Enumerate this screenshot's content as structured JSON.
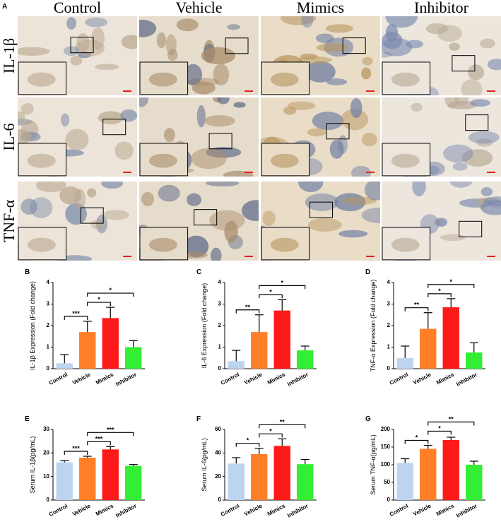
{
  "figure": {
    "panel_label": "A",
    "columns": [
      "Control",
      "Vehicle",
      "Mimics",
      "Inhibitor"
    ],
    "rows": [
      "IL-1β",
      "IL-6",
      "TNF-α"
    ]
  },
  "chart_data": [
    {
      "type": "bar",
      "panel_label": "B",
      "ylabel": "IL-1β Expression (Fold change)",
      "categories": [
        "Control",
        "Vehicle",
        "Mimics",
        "Inhibitor"
      ],
      "values": [
        0.25,
        1.7,
        2.35,
        1.0
      ],
      "errors": [
        0.4,
        0.5,
        0.5,
        0.3
      ],
      "colors": [
        "#bcd4f0",
        "#ff7f27",
        "#ff1a1a",
        "#33ee33"
      ],
      "ylim": [
        0,
        4
      ],
      "yticks": [
        0,
        1,
        2,
        3,
        4
      ],
      "comparisons": [
        {
          "from": "Control",
          "to": "Vehicle",
          "label": "***"
        },
        {
          "from": "Vehicle",
          "to": "Mimics",
          "label": "*"
        },
        {
          "from": "Vehicle",
          "to": "Inhibitor",
          "label": "*"
        }
      ]
    },
    {
      "type": "bar",
      "panel_label": "C",
      "ylabel": "IL-6 Expression (Fold change)",
      "categories": [
        "Control",
        "Vehicle",
        "Mimics",
        "Inhibitor"
      ],
      "values": [
        0.35,
        1.7,
        2.7,
        0.85
      ],
      "errors": [
        0.5,
        0.8,
        0.5,
        0.2
      ],
      "colors": [
        "#bcd4f0",
        "#ff7f27",
        "#ff1a1a",
        "#33ee33"
      ],
      "ylim": [
        0,
        4
      ],
      "yticks": [
        0,
        1,
        2,
        3,
        4
      ],
      "comparisons": [
        {
          "from": "Control",
          "to": "Vehicle",
          "label": "**"
        },
        {
          "from": "Vehicle",
          "to": "Mimics",
          "label": "*"
        },
        {
          "from": "Vehicle",
          "to": "Inhibitor",
          "label": "*"
        }
      ]
    },
    {
      "type": "bar",
      "panel_label": "D",
      "ylabel": "TNF-α Expression (Fold change)",
      "categories": [
        "Control",
        "Vehicle",
        "Mimics",
        "Inhibitor"
      ],
      "values": [
        0.5,
        1.85,
        2.85,
        0.75
      ],
      "errors": [
        0.55,
        0.75,
        0.4,
        0.45
      ],
      "colors": [
        "#bcd4f0",
        "#ff7f27",
        "#ff1a1a",
        "#33ee33"
      ],
      "ylim": [
        0,
        4
      ],
      "yticks": [
        0,
        1,
        2,
        3,
        4
      ],
      "comparisons": [
        {
          "from": "Control",
          "to": "Vehicle",
          "label": "**"
        },
        {
          "from": "Vehicle",
          "to": "Mimics",
          "label": "*"
        },
        {
          "from": "Vehicle",
          "to": "Inhibitor",
          "label": "*"
        }
      ]
    },
    {
      "type": "bar",
      "panel_label": "E",
      "ylabel": "Serum IL-1β(pg/mL)",
      "categories": [
        "Control",
        "Vehicle",
        "Mimics",
        "Inhibitor"
      ],
      "values": [
        16,
        18,
        21.5,
        14.5
      ],
      "errors": [
        0.7,
        0.6,
        1.2,
        0.6
      ],
      "colors": [
        "#bcd4f0",
        "#ff7f27",
        "#ff1a1a",
        "#33ee33"
      ],
      "ylim": [
        0,
        30
      ],
      "yticks": [
        0,
        10,
        20,
        30
      ],
      "comparisons": [
        {
          "from": "Control",
          "to": "Vehicle",
          "label": "***"
        },
        {
          "from": "Vehicle",
          "to": "Mimics",
          "label": "***"
        },
        {
          "from": "Vehicle",
          "to": "Inhibitor",
          "label": "***"
        }
      ]
    },
    {
      "type": "bar",
      "panel_label": "F",
      "ylabel": "Serum IL-6(pg/mL)",
      "categories": [
        "Control",
        "Vehicle",
        "Mimics",
        "Inhibitor"
      ],
      "values": [
        31,
        39,
        46,
        30.5
      ],
      "errors": [
        5,
        5,
        6,
        4
      ],
      "colors": [
        "#bcd4f0",
        "#ff7f27",
        "#ff1a1a",
        "#33ee33"
      ],
      "ylim": [
        0,
        60
      ],
      "yticks": [
        0,
        20,
        40,
        60
      ],
      "comparisons": [
        {
          "from": "Control",
          "to": "Vehicle",
          "label": "*"
        },
        {
          "from": "Vehicle",
          "to": "Mimics",
          "label": "*"
        },
        {
          "from": "Vehicle",
          "to": "Inhibitor",
          "label": "**"
        }
      ]
    },
    {
      "type": "bar",
      "panel_label": "G",
      "ylabel": "Serum TNF-α(pg/mL)",
      "categories": [
        "Control",
        "Vehicle",
        "Mimics",
        "Inhibitor"
      ],
      "values": [
        105,
        145,
        170,
        100
      ],
      "errors": [
        12,
        10,
        8,
        10
      ],
      "colors": [
        "#bcd4f0",
        "#ff7f27",
        "#ff1a1a",
        "#33ee33"
      ],
      "ylim": [
        0,
        200
      ],
      "yticks": [
        0,
        50,
        100,
        150,
        200
      ],
      "comparisons": [
        {
          "from": "Control",
          "to": "Vehicle",
          "label": "*"
        },
        {
          "from": "Vehicle",
          "to": "Mimics",
          "label": "*"
        },
        {
          "from": "Vehicle",
          "to": "Inhibitor",
          "label": "**"
        }
      ]
    }
  ]
}
